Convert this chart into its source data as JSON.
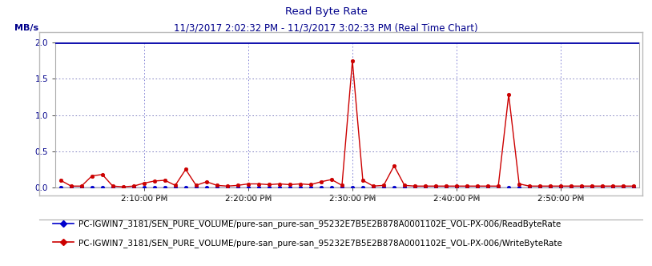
{
  "title_line1": "Read Byte Rate",
  "title_line2": "11/3/2017 2:02:32 PM - 11/3/2017 3:02:33 PM (Real Time Chart)",
  "ylabel": "MB/s",
  "title_color": "#00008B",
  "title_fontsize": 9.5,
  "subtitle_fontsize": 8.5,
  "bg_color": "#ffffff",
  "plot_bg_color": "#ffffff",
  "chart_border_color": "#aaaaaa",
  "ylim": [
    0.0,
    2.0
  ],
  "yticks": [
    0.0,
    0.5,
    1.0,
    1.5,
    2.0
  ],
  "ytick_color": "#00008B",
  "xtick_labels": [
    "2:10:00 PM",
    "2:20:00 PM",
    "2:30:00 PM",
    "2:40:00 PM",
    "2:50:00 PM"
  ],
  "xtick_positions": [
    8,
    18,
    28,
    38,
    48
  ],
  "blue_line_color": "#0000CC",
  "red_line_color": "#CC0000",
  "top_line_color": "#0000AA",
  "grid_h_color": "#333399",
  "grid_v_color": "#3333BB",
  "legend_blue": "PC-IGWIN7_3181/SEN_PURE_VOLUME/pure-san_pure-san_95232E7B5E2B878A0001102E_VOL-PX-006/ReadByteRate",
  "legend_red": "PC-IGWIN7_3181/SEN_PURE_VOLUME/pure-san_pure-san_95232E7B5E2B878A0001102E_VOL-PX-006/WriteByteRate",
  "n_points": 56,
  "blue_y": [
    0,
    0,
    0,
    0,
    0,
    0,
    0,
    0,
    0,
    0,
    0,
    0,
    0,
    0,
    0,
    0,
    0,
    0,
    0,
    0,
    0,
    0,
    0,
    0,
    0,
    0,
    0,
    0,
    0,
    0,
    0,
    0,
    0,
    0,
    0,
    0,
    0,
    0,
    0,
    0,
    0,
    0,
    0,
    0,
    0,
    0,
    0,
    0,
    0,
    0,
    0,
    0,
    0,
    0,
    0,
    0
  ],
  "red_y": [
    0.1,
    0.02,
    0.02,
    0.16,
    0.18,
    0.02,
    0.01,
    0.02,
    0.06,
    0.09,
    0.1,
    0.03,
    0.25,
    0.03,
    0.08,
    0.03,
    0.02,
    0.03,
    0.05,
    0.05,
    0.04,
    0.05,
    0.04,
    0.05,
    0.04,
    0.08,
    0.11,
    0.03,
    1.75,
    0.1,
    0.02,
    0.03,
    0.3,
    0.03,
    0.02,
    0.02,
    0.02,
    0.02,
    0.02,
    0.02,
    0.02,
    0.02,
    0.02,
    1.28,
    0.05,
    0.02,
    0.02,
    0.02,
    0.02,
    0.02,
    0.02,
    0.02,
    0.02,
    0.02,
    0.02,
    0.02
  ],
  "vgrid_positions": [
    8,
    18,
    28,
    38,
    48
  ],
  "outer_bg_color": "#e8e8e8",
  "legend_fontsize": 7.5,
  "tick_fontsize": 7.5,
  "ylabel_fontsize": 8.0
}
